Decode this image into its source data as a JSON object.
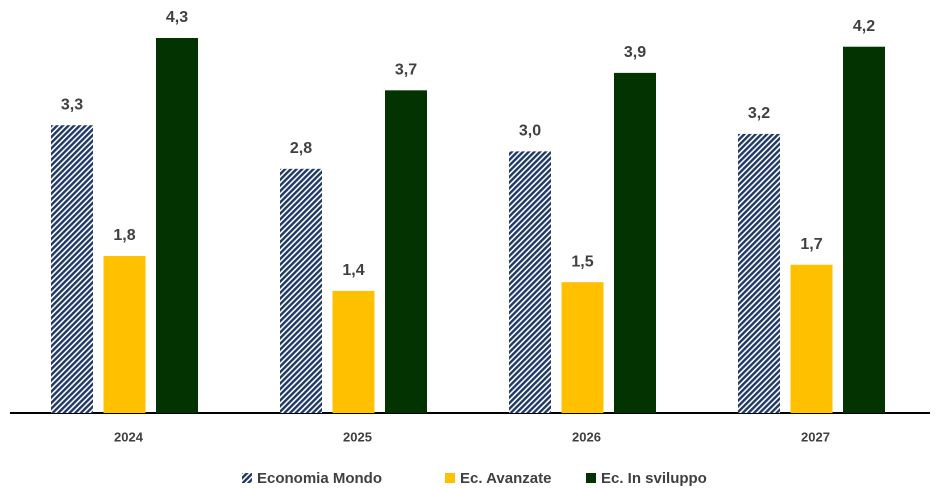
{
  "chart_data": {
    "type": "bar",
    "categories": [
      "2024",
      "2025",
      "2026",
      "2027"
    ],
    "series": [
      {
        "name": "Economia Mondo",
        "color": "#1f3864",
        "pattern": "diagonal",
        "values": [
          3.3,
          2.8,
          3.0,
          3.2
        ],
        "value_labels": [
          "3,3",
          "2,8",
          "3,0",
          "3,2"
        ]
      },
      {
        "name": "Ec. Avanzate",
        "color": "#ffc000",
        "values": [
          1.8,
          1.4,
          1.5,
          1.7
        ],
        "value_labels": [
          "1,8",
          "1,4",
          "1,5",
          "1,7"
        ]
      },
      {
        "name": "Ec. In sviluppo",
        "color": "#033300",
        "values": [
          4.3,
          3.7,
          3.9,
          4.2
        ],
        "value_labels": [
          "4,3",
          "3,7",
          "3,9",
          "4,2"
        ]
      }
    ],
    "legend": "bottom"
  }
}
